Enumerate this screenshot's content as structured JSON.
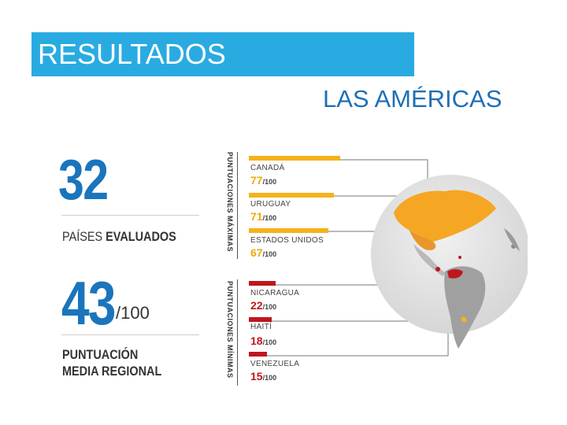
{
  "banner": {
    "title": "RESULTADOS",
    "color": "#29abe2"
  },
  "subtitle": "LAS AMÉRICAS",
  "stats": {
    "evaluated_count": "32",
    "evaluated_caption_light": "PAÍSES ",
    "evaluated_caption_bold": "EVALUADOS",
    "average_score": "43",
    "average_denominator": "/100",
    "average_caption_line1": "PUNTUACIÓN",
    "average_caption_line2": "MEDIA REGIONAL"
  },
  "groups": {
    "max_label": "PUNTUACIONES MÁXIMAS",
    "min_label": "PUNTUACIONES MÍNIMAS"
  },
  "highest": [
    {
      "country": "CANADÁ",
      "score": "77",
      "den": "/100"
    },
    {
      "country": "URUGUAY",
      "score": "71",
      "den": "/100"
    },
    {
      "country": "ESTADOS UNIDOS",
      "score": "67",
      "den": "/100"
    }
  ],
  "lowest": [
    {
      "country": "NICARAGUA",
      "score": "22",
      "den": "/100"
    },
    {
      "country": "HAITÍ",
      "score": "18",
      "den": "/100"
    },
    {
      "country": "VENEZUELA",
      "score": "15",
      "den": "/100"
    }
  ],
  "colors": {
    "high": "#f5b21b",
    "low": "#c0161d",
    "accent": "#1a75bc"
  }
}
